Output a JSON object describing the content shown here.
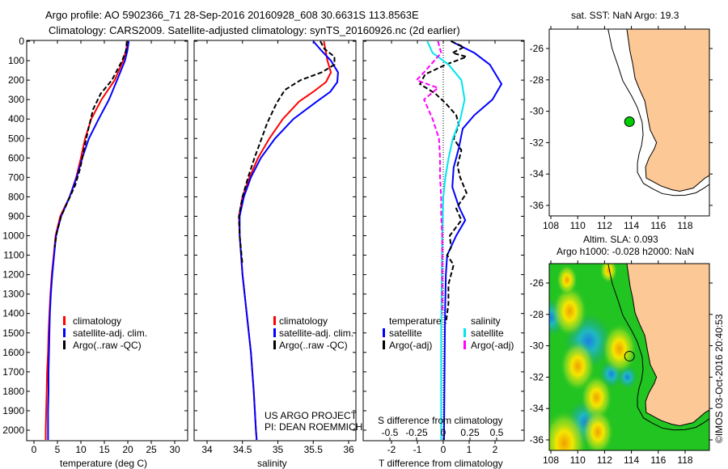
{
  "title": {
    "line1": "Argo profile: AO 5902366_71 28-Sep-2016 20160928_608 30.6631S 113.8563E",
    "line2": "Climatology: CARS2009. Satellite-adjusted climatology: synTS_20160926.nc (2d earlier)"
  },
  "colors": {
    "climatology": "#ff0000",
    "satellite": "#0000ff",
    "argo": "#000000",
    "sat_salinity": "#00e5ee",
    "argo_salinity": "#ff00ff",
    "land": "#fcc896",
    "argo_dot": "#00cc00"
  },
  "depth_ticks": [
    0,
    100,
    200,
    300,
    400,
    500,
    600,
    700,
    800,
    900,
    1000,
    1100,
    1200,
    1300,
    1400,
    1500,
    1600,
    1700,
    1800,
    1900,
    2000
  ],
  "credit": "©IMOS 03-Oct-2016 20:40:53",
  "chart_data": [
    {
      "type": "line",
      "id": "temperature",
      "xlabel": "temperature (deg C)",
      "ylabel": "depth",
      "xlim": [
        -1.5,
        32.8
      ],
      "ylim": [
        2050,
        0
      ],
      "xticks": [
        0,
        5,
        10,
        15,
        20,
        25,
        30
      ],
      "legend": [
        "climatology",
        "satellite-adj. clim.",
        "Argo(..raw -QC)"
      ],
      "series": [
        {
          "name": "climatology",
          "color": "#ff0000",
          "dashed": false,
          "points": [
            [
              20,
              0
            ],
            [
              19.6,
              50
            ],
            [
              19,
              100
            ],
            [
              17.2,
              200
            ],
            [
              14.4,
              300
            ],
            [
              12.2,
              400
            ],
            [
              10.9,
              500
            ],
            [
              10,
              600
            ],
            [
              9,
              700
            ],
            [
              7.6,
              800
            ],
            [
              5.6,
              900
            ],
            [
              4.6,
              1000
            ],
            [
              4.2,
              1100
            ],
            [
              3.8,
              1200
            ],
            [
              3.5,
              1300
            ],
            [
              3.3,
              1400
            ],
            [
              3.1,
              1500
            ],
            [
              3,
              1600
            ],
            [
              2.8,
              1700
            ],
            [
              2.7,
              1800
            ],
            [
              2.6,
              1900
            ],
            [
              2.5,
              2000
            ],
            [
              2.5,
              2050
            ]
          ]
        },
        {
          "name": "satellite-adj. clim.",
          "color": "#0000ff",
          "dashed": false,
          "points": [
            [
              20.2,
              0
            ],
            [
              19.9,
              50
            ],
            [
              19.4,
              100
            ],
            [
              17.7,
              200
            ],
            [
              16,
              300
            ],
            [
              13.8,
              400
            ],
            [
              11.7,
              500
            ],
            [
              10.3,
              600
            ],
            [
              9.1,
              700
            ],
            [
              7.6,
              800
            ],
            [
              5.8,
              900
            ],
            [
              4.7,
              1000
            ],
            [
              4.3,
              1100
            ],
            [
              3.9,
              1200
            ],
            [
              3.6,
              1300
            ],
            [
              3.4,
              1400
            ],
            [
              3.3,
              1500
            ],
            [
              3.2,
              1600
            ],
            [
              3.1,
              1700
            ],
            [
              3.1,
              1800
            ],
            [
              3.0,
              1900
            ],
            [
              3.0,
              2000
            ],
            [
              3.0,
              2050
            ]
          ]
        },
        {
          "name": "Argo(..raw -QC)",
          "color": "#000000",
          "dashed": true,
          "points": [
            [
              19.8,
              0
            ],
            [
              19.6,
              50
            ],
            [
              18.8,
              100
            ],
            [
              16.6,
              200
            ],
            [
              14.2,
              270
            ],
            [
              12.6,
              350
            ],
            [
              11.6,
              450
            ],
            [
              10.7,
              550
            ],
            [
              9.9,
              650
            ],
            [
              8.8,
              740
            ],
            [
              7.3,
              820
            ],
            [
              5.8,
              900
            ],
            [
              4.9,
              980
            ],
            [
              4.4,
              1060
            ]
          ]
        }
      ]
    },
    {
      "type": "line",
      "id": "salinity",
      "xlabel": "salinity",
      "xlim": [
        33.82,
        36.09
      ],
      "ylim": [
        2050,
        0
      ],
      "xticks": [
        34,
        34.5,
        35,
        35.5,
        36
      ],
      "legend": [
        "climatology",
        "satellite-adj. clim.",
        "Argo(..raw -QC)"
      ],
      "annotation": [
        "US ARGO PROJECT",
        "PI: DEAN ROEMMICH"
      ],
      "series": [
        {
          "name": "climatology",
          "color": "#ff0000",
          "dashed": false,
          "points": [
            [
              35.65,
              0
            ],
            [
              35.7,
              100
            ],
            [
              35.75,
              160
            ],
            [
              35.68,
              210
            ],
            [
              35.5,
              260
            ],
            [
              35.3,
              310
            ],
            [
              35.07,
              400
            ],
            [
              34.88,
              500
            ],
            [
              34.72,
              600
            ],
            [
              34.6,
              700
            ],
            [
              34.5,
              800
            ],
            [
              34.45,
              900
            ],
            [
              34.46,
              1000
            ],
            [
              34.5,
              1200
            ],
            [
              34.56,
              1400
            ],
            [
              34.62,
              1600
            ],
            [
              34.66,
              1800
            ],
            [
              34.69,
              2000
            ],
            [
              34.7,
              2050
            ]
          ]
        },
        {
          "name": "satellite-adj. clim.",
          "color": "#0000ff",
          "dashed": false,
          "points": [
            [
              35.5,
              0
            ],
            [
              35.62,
              50
            ],
            [
              35.75,
              100
            ],
            [
              35.85,
              160
            ],
            [
              35.84,
              210
            ],
            [
              35.74,
              260
            ],
            [
              35.55,
              310
            ],
            [
              35.22,
              400
            ],
            [
              34.96,
              500
            ],
            [
              34.76,
              600
            ],
            [
              34.62,
              700
            ],
            [
              34.52,
              800
            ],
            [
              34.46,
              900
            ],
            [
              34.46,
              1000
            ],
            [
              34.5,
              1200
            ],
            [
              34.56,
              1400
            ],
            [
              34.62,
              1600
            ],
            [
              34.66,
              1800
            ],
            [
              34.69,
              2000
            ],
            [
              34.7,
              2050
            ]
          ]
        },
        {
          "name": "Argo(..raw -QC)",
          "color": "#000000",
          "dashed": true,
          "points": [
            [
              35.6,
              0
            ],
            [
              35.66,
              40
            ],
            [
              35.8,
              80
            ],
            [
              35.8,
              120
            ],
            [
              35.62,
              160
            ],
            [
              35.32,
              200
            ],
            [
              35.1,
              250
            ],
            [
              34.98,
              320
            ],
            [
              34.85,
              420
            ],
            [
              34.77,
              500
            ],
            [
              34.67,
              600
            ],
            [
              34.58,
              700
            ],
            [
              34.5,
              800
            ],
            [
              34.45,
              900
            ],
            [
              34.46,
              1000
            ],
            [
              34.5,
              1150
            ]
          ]
        }
      ]
    },
    {
      "type": "line",
      "id": "differences",
      "xlabel": "T difference from climatology",
      "xlabel_top": "S difference from climatology",
      "xlim": [
        -3.1,
        3.1
      ],
      "s_xlim": [
        -0.76,
        0.76
      ],
      "ylim": [
        2050,
        0
      ],
      "xticks": [
        -2,
        -1,
        0,
        1,
        2
      ],
      "s_xticks": [
        "-0.5",
        "-0.25",
        "0",
        "0.25",
        "0.5"
      ],
      "legend_headers": [
        "temperature",
        "salinity"
      ],
      "legend": [
        "satellite",
        "Argo(-adj)",
        "satellite",
        "Argo(-adj)"
      ],
      "series": [
        {
          "name": "temperature satellite",
          "color": "#0000ff",
          "dashed": false,
          "axis": "T",
          "points": [
            [
              0.3,
              0
            ],
            [
              1.2,
              60
            ],
            [
              1.8,
              120
            ],
            [
              2.25,
              220
            ],
            [
              1.9,
              300
            ],
            [
              1.2,
              380
            ],
            [
              0.75,
              450
            ],
            [
              0.6,
              550
            ],
            [
              0.4,
              650
            ],
            [
              0.35,
              750
            ],
            [
              0.6,
              850
            ],
            [
              0.85,
              920
            ],
            [
              0.5,
              1000
            ],
            [
              0.15,
              1100
            ],
            [
              0.1,
              1200
            ],
            [
              0.07,
              1400
            ],
            [
              0.05,
              1700
            ],
            [
              0.03,
              2000
            ],
            [
              0.03,
              2050
            ]
          ]
        },
        {
          "name": "temperature Argo(-adj)",
          "color": "#000000",
          "dashed": true,
          "axis": "T",
          "points": [
            [
              0.3,
              0
            ],
            [
              0.8,
              30
            ],
            [
              0.35,
              60
            ],
            [
              0.9,
              80
            ],
            [
              0.1,
              120
            ],
            [
              -0.7,
              170
            ],
            [
              -0.9,
              220
            ],
            [
              -0.3,
              270
            ],
            [
              0.1,
              320
            ],
            [
              0.5,
              380
            ],
            [
              0.6,
              430
            ],
            [
              0.4,
              500
            ],
            [
              0.7,
              560
            ],
            [
              0.55,
              640
            ],
            [
              0.65,
              700
            ],
            [
              0.9,
              780
            ],
            [
              0.5,
              860
            ],
            [
              0.7,
              920
            ],
            [
              0.25,
              1000
            ],
            [
              0.3,
              1060
            ],
            [
              0.15,
              1100
            ],
            [
              0.4,
              1150
            ],
            [
              0.2,
              1250
            ],
            [
              0.2,
              1350
            ],
            [
              0.1,
              1450
            ]
          ]
        },
        {
          "name": "salinity satellite",
          "color": "#00e5ee",
          "dashed": false,
          "axis": "S",
          "points": [
            [
              -0.15,
              0
            ],
            [
              -0.1,
              60
            ],
            [
              0.05,
              120
            ],
            [
              0.17,
              200
            ],
            [
              0.2,
              300
            ],
            [
              0.16,
              400
            ],
            [
              0.09,
              500
            ],
            [
              0.05,
              600
            ],
            [
              0.02,
              700
            ],
            [
              0,
              800
            ],
            [
              -0.01,
              1000
            ],
            [
              -0.02,
              1500
            ],
            [
              -0.02,
              2050
            ]
          ]
        },
        {
          "name": "salinity Argo(-adj)",
          "color": "#ff00ff",
          "dashed": true,
          "axis": "S",
          "points": [
            [
              -0.05,
              0
            ],
            [
              -0.02,
              60
            ],
            [
              -0.18,
              160
            ],
            [
              -0.25,
              200
            ],
            [
              -0.05,
              240
            ],
            [
              -0.18,
              300
            ],
            [
              -0.1,
              400
            ],
            [
              -0.04,
              500
            ],
            [
              -0.03,
              600
            ],
            [
              -0.03,
              700
            ],
            [
              -0.02,
              800
            ],
            [
              -0.02,
              900
            ],
            [
              -0.01,
              1000
            ],
            [
              -0.01,
              1200
            ],
            [
              -0.01,
              1400
            ]
          ]
        }
      ]
    },
    {
      "type": "map",
      "id": "sst-map",
      "title": "sat. SST: NaN Argo: 19.3",
      "lon_ticks": [
        108,
        110,
        112,
        114,
        116,
        118
      ],
      "lat_ticks": [
        -26,
        -28,
        -30,
        -32,
        -34,
        -36
      ],
      "lon_range": [
        107.88,
        119.8
      ],
      "lat_range": [
        -36.7,
        -24.76
      ],
      "argo_position": [
        113.856,
        -30.663
      ]
    },
    {
      "type": "map",
      "id": "sla-map",
      "title_line1": "Altim. SLA: 0.093",
      "title_line2": "Argo h1000: -0.028 h2000: NaN",
      "lon_ticks": [
        108,
        110,
        112,
        114,
        116,
        118
      ],
      "lat_ticks": [
        -26,
        -28,
        -30,
        -32,
        -34,
        -36
      ],
      "argo_position": [
        113.856,
        -30.663
      ],
      "sla_highs": [
        [
          109.4,
          -27.8,
          1
        ],
        [
          110.0,
          -31.3,
          1
        ],
        [
          111.4,
          -33.3,
          0.9
        ],
        [
          113.1,
          -30.2,
          1
        ],
        [
          111.5,
          -35.5,
          0.9
        ],
        [
          109.0,
          -36.2,
          1.3
        ],
        [
          109.2,
          -25.8,
          0.6
        ],
        [
          112.3,
          -25.2,
          0.5
        ]
      ],
      "sla_lows": [
        [
          110.8,
          -29.7,
          1.2
        ],
        [
          110.6,
          -34.9,
          1
        ],
        [
          108.0,
          -28.2,
          0.8
        ],
        [
          112.5,
          -31.8,
          0.6
        ],
        [
          113.7,
          -32.0,
          0.5
        ]
      ]
    }
  ],
  "coastline": [
    [
      113.66,
      -24.76
    ],
    [
      113.9,
      -26.2
    ],
    [
      114.1,
      -27.0
    ],
    [
      114.27,
      -27.9
    ],
    [
      114.6,
      -28.6
    ],
    [
      115.0,
      -29.35
    ],
    [
      115.2,
      -30.3
    ],
    [
      115.4,
      -31.2
    ],
    [
      115.87,
      -32.0
    ],
    [
      115.7,
      -32.4
    ],
    [
      115.3,
      -33.0
    ],
    [
      115.05,
      -33.56
    ],
    [
      115.1,
      -34.25
    ],
    [
      116.2,
      -34.76
    ],
    [
      117.0,
      -35.0
    ],
    [
      117.6,
      -35.1
    ],
    [
      118.6,
      -34.9
    ],
    [
      119.5,
      -34.25
    ],
    [
      119.8,
      -34.1
    ]
  ],
  "isobath": [
    [
      112.26,
      -24.76
    ],
    [
      112.56,
      -26.0
    ],
    [
      113.0,
      -27.1
    ],
    [
      113.36,
      -28.06
    ],
    [
      114.0,
      -29.0
    ],
    [
      114.45,
      -29.77
    ],
    [
      114.8,
      -30.7
    ],
    [
      114.87,
      -31.5
    ],
    [
      114.75,
      -32.2
    ],
    [
      114.57,
      -32.7
    ],
    [
      114.45,
      -33.3
    ],
    [
      114.45,
      -33.9
    ],
    [
      114.9,
      -34.6
    ],
    [
      115.57,
      -34.94
    ],
    [
      116.3,
      -35.25
    ],
    [
      117.16,
      -35.37
    ],
    [
      118.0,
      -35.35
    ],
    [
      118.8,
      -35.2
    ],
    [
      119.4,
      -34.9
    ],
    [
      119.8,
      -34.66
    ]
  ]
}
